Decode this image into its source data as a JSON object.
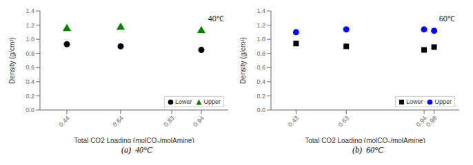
{
  "chart_data": [
    {
      "type": "scatter",
      "title": "40℃",
      "x_label": "Total CO2 Loading (molCO₂/molAmine)",
      "y_label": "Density (g/cm³)",
      "annotations": [
        "(a)  40°C"
      ],
      "series": [
        {
          "name": "Lower",
          "color": "black",
          "marker": "circle",
          "x": [
            0.44,
            0.64,
            0.94
          ],
          "values": [
            0.93,
            0.9,
            0.85
          ]
        },
        {
          "name": "Upper",
          "color": "green",
          "marker": "triangle",
          "x": [
            0.44,
            0.64,
            0.94
          ],
          "values": [
            1.15,
            1.17,
            1.12
          ]
        }
      ],
      "xlim": [
        0.34,
        1.04
      ],
      "xticks": [
        0.44,
        0.64,
        0.83,
        0.94
      ],
      "ylim": [
        0,
        1.4
      ],
      "yticks": [
        {
          "value": 0,
          "label": "0.0"
        },
        0.2,
        0.4,
        0.6,
        0.8,
        {
          "value": 1,
          "label": "1.0"
        },
        1.2,
        1.4
      ],
      "legend": "lower right",
      "grid": false
    },
    {
      "type": "scatter",
      "title": "60℃",
      "x_label": "Total CO2 Loading (molCO₂/molAmine)",
      "y_label": "Density (g/cm³)",
      "annotations": [
        "(b)  60°C"
      ],
      "series": [
        {
          "name": "Lower",
          "color": "black",
          "marker": "square",
          "x": [
            0.43,
            0.63,
            0.94,
            0.98
          ],
          "values": [
            0.94,
            0.9,
            0.85,
            0.89
          ]
        },
        {
          "name": "Upper",
          "color": "blue",
          "marker": "circle",
          "x": [
            0.43,
            0.63,
            0.94,
            0.98
          ],
          "values": [
            1.1,
            1.14,
            1.14,
            1.12
          ]
        }
      ],
      "xlim": [
        0.33,
        1.08
      ],
      "xticks": [
        0.43,
        0.63,
        0.94,
        0.98
      ],
      "ylim": [
        0,
        1.4
      ],
      "yticks": [
        {
          "value": 0,
          "label": "0.0"
        },
        0.2,
        0.4,
        0.6,
        0.8,
        {
          "value": 1,
          "label": "1.0"
        },
        1.2,
        1.4
      ],
      "legend": "lower right",
      "grid": false
    }
  ]
}
